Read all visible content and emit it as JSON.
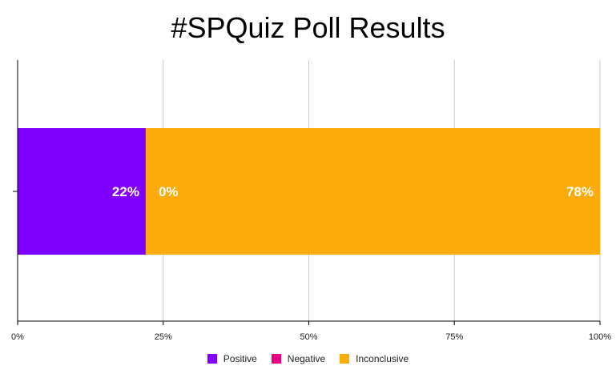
{
  "chart_data": {
    "type": "bar",
    "orientation": "horizontal",
    "stacked": true,
    "title": "#SPQuiz Poll Results",
    "categories": [
      ""
    ],
    "series": [
      {
        "name": "Positive",
        "values": [
          22
        ],
        "label": "22%",
        "color": "#8000ff"
      },
      {
        "name": "Negative",
        "values": [
          0
        ],
        "label": "0%",
        "color": "#e6007e"
      },
      {
        "name": "Inconclusive",
        "values": [
          78
        ],
        "label": "78%",
        "color": "#fbab0b"
      }
    ],
    "xlim": [
      0,
      100
    ],
    "xticks": [
      "0%",
      "25%",
      "50%",
      "75%",
      "100%"
    ],
    "grid": true,
    "legend_position": "bottom"
  }
}
